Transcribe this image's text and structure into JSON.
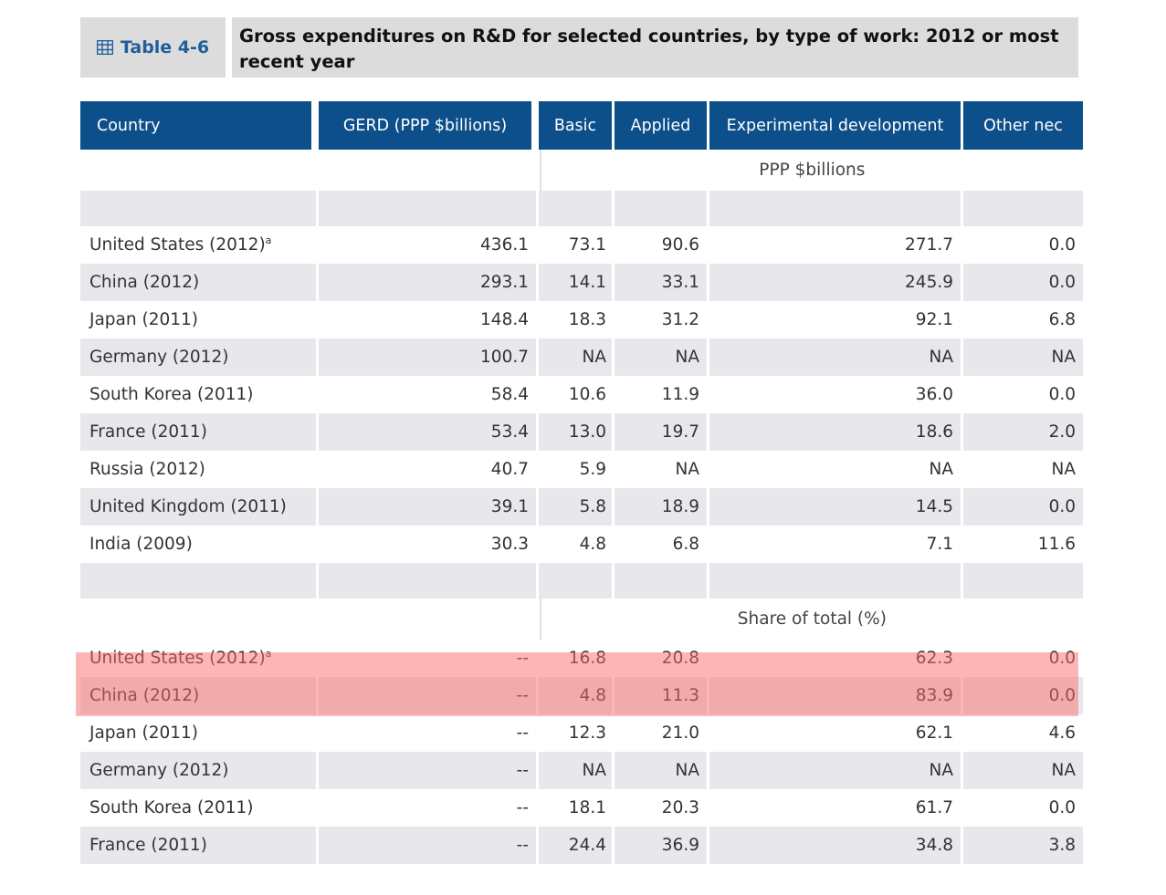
{
  "table_badge": "Table 4-6",
  "title": "Gross expenditures on R&D for selected countries, by type of work: 2012 or most recent year",
  "columns": [
    "Country",
    "GERD (PPP $billions)",
    "Basic",
    "Applied",
    "Experimental development",
    "Other nec"
  ],
  "section1": {
    "unit_label": "PPP $billions",
    "rows": [
      {
        "country": "United States (2012)",
        "note": "a",
        "gerd": "436.1",
        "basic": "73.1",
        "applied": "90.6",
        "expdev": "271.7",
        "other": "0.0"
      },
      {
        "country": "China (2012)",
        "note": "",
        "gerd": "293.1",
        "basic": "14.1",
        "applied": "33.1",
        "expdev": "245.9",
        "other": "0.0"
      },
      {
        "country": "Japan (2011)",
        "note": "",
        "gerd": "148.4",
        "basic": "18.3",
        "applied": "31.2",
        "expdev": "92.1",
        "other": "6.8"
      },
      {
        "country": "Germany (2012)",
        "note": "",
        "gerd": "100.7",
        "basic": "NA",
        "applied": "NA",
        "expdev": "NA",
        "other": "NA"
      },
      {
        "country": "South Korea (2011)",
        "note": "",
        "gerd": "58.4",
        "basic": "10.6",
        "applied": "11.9",
        "expdev": "36.0",
        "other": "0.0"
      },
      {
        "country": "France (2011)",
        "note": "",
        "gerd": "53.4",
        "basic": "13.0",
        "applied": "19.7",
        "expdev": "18.6",
        "other": "2.0"
      },
      {
        "country": "Russia (2012)",
        "note": "",
        "gerd": "40.7",
        "basic": "5.9",
        "applied": "NA",
        "expdev": "NA",
        "other": "NA"
      },
      {
        "country": "United Kingdom (2011)",
        "note": "",
        "gerd": "39.1",
        "basic": "5.8",
        "applied": "18.9",
        "expdev": "14.5",
        "other": "0.0"
      },
      {
        "country": "India (2009)",
        "note": "",
        "gerd": "30.3",
        "basic": "4.8",
        "applied": "6.8",
        "expdev": "7.1",
        "other": "11.6"
      }
    ]
  },
  "section2": {
    "unit_label": "Share of total (%)",
    "rows": [
      {
        "country": "United States (2012)",
        "note": "a",
        "gerd": "--",
        "basic": "16.8",
        "applied": "20.8",
        "expdev": "62.3",
        "other": "0.0"
      },
      {
        "country": "China (2012)",
        "note": "",
        "gerd": "--",
        "basic": "4.8",
        "applied": "11.3",
        "expdev": "83.9",
        "other": "0.0"
      },
      {
        "country": "Japan (2011)",
        "note": "",
        "gerd": "--",
        "basic": "12.3",
        "applied": "21.0",
        "expdev": "62.1",
        "other": "4.6"
      },
      {
        "country": "Germany (2012)",
        "note": "",
        "gerd": "--",
        "basic": "NA",
        "applied": "NA",
        "expdev": "NA",
        "other": "NA"
      },
      {
        "country": "South Korea (2011)",
        "note": "",
        "gerd": "--",
        "basic": "18.1",
        "applied": "20.3",
        "expdev": "61.7",
        "other": "0.0"
      },
      {
        "country": "France (2011)",
        "note": "",
        "gerd": "--",
        "basic": "24.4",
        "applied": "36.9",
        "expdev": "34.8",
        "other": "3.8"
      }
    ]
  },
  "colors": {
    "header_bg": "#0d4f8a",
    "badge_text": "#1f5f99",
    "shade_row": "#e8e8ec",
    "highlight": "#fa6e6e"
  },
  "icons": {
    "badge": "table-grid-icon"
  }
}
